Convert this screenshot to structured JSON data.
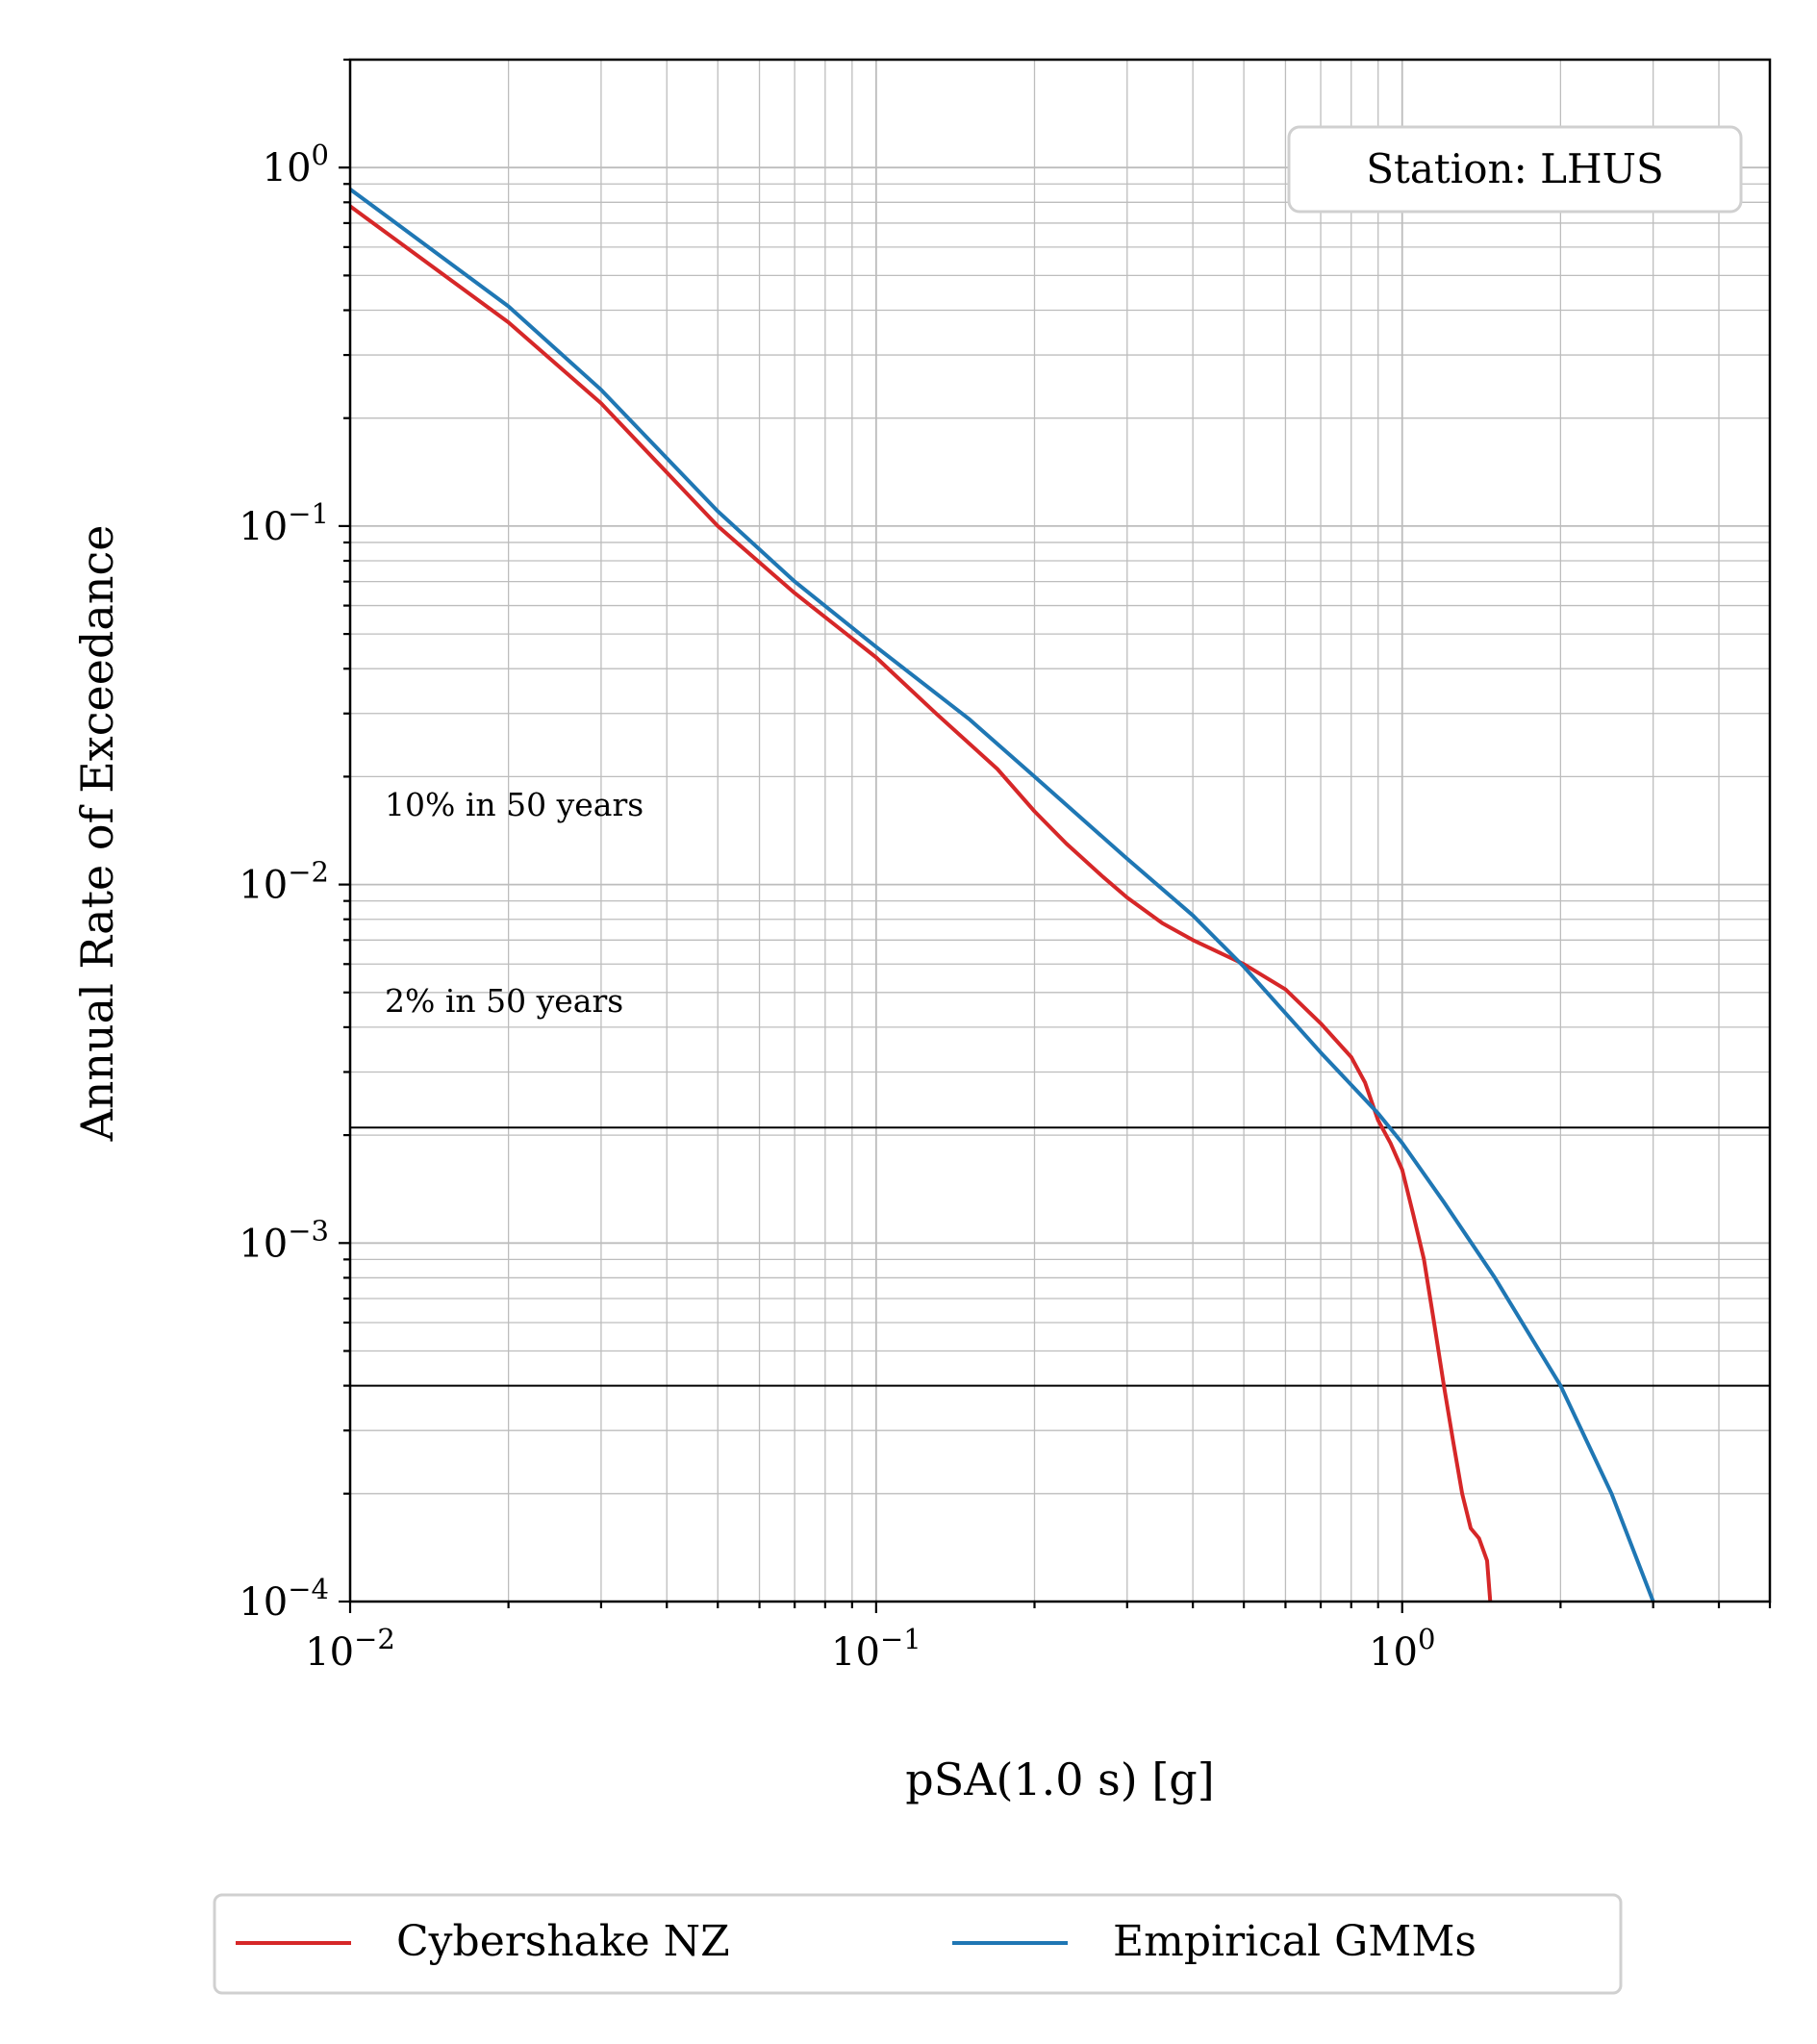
{
  "chart_data": {
    "type": "line",
    "xlabel": "pSA(1.0 s) [g]",
    "ylabel": "Annual Rate of Exceedance",
    "xscale": "log",
    "yscale": "log",
    "xlim": [
      0.01,
      5.0
    ],
    "ylim": [
      0.0001,
      2.0
    ],
    "x_ticks": [
      {
        "value": 0.01,
        "base": "10",
        "exp": "−2"
      },
      {
        "value": 0.1,
        "base": "10",
        "exp": "−1"
      },
      {
        "value": 1,
        "base": "10",
        "exp": "0"
      }
    ],
    "y_ticks": [
      {
        "value": 0.0001,
        "base": "10",
        "exp": "−4"
      },
      {
        "value": 0.001,
        "base": "10",
        "exp": "−3"
      },
      {
        "value": 0.01,
        "base": "10",
        "exp": "−2"
      },
      {
        "value": 0.1,
        "base": "10",
        "exp": "−1"
      },
      {
        "value": 1,
        "base": "10",
        "exp": "0"
      }
    ],
    "grid": true,
    "station_label": "Station: LHUS",
    "station_label_position": "top-right",
    "hazard_levels": [
      {
        "label": "10% in 50 years",
        "y": 0.0021
      },
      {
        "label": "2% in 50 years",
        "y": 0.0004
      }
    ],
    "legend_position": "below",
    "series": [
      {
        "name": "Cybershake NZ",
        "color": "#d62728",
        "x": [
          0.01,
          0.02,
          0.03,
          0.05,
          0.07,
          0.1,
          0.13,
          0.17,
          0.2,
          0.23,
          0.27,
          0.3,
          0.35,
          0.4,
          0.5,
          0.6,
          0.7,
          0.8,
          0.85,
          0.9,
          0.95,
          1.0,
          1.05,
          1.1,
          1.15,
          1.2,
          1.25,
          1.3,
          1.35,
          1.4,
          1.45,
          1.47
        ],
        "y": [
          0.78,
          0.37,
          0.22,
          0.1,
          0.065,
          0.043,
          0.03,
          0.021,
          0.016,
          0.013,
          0.0105,
          0.0092,
          0.0078,
          0.007,
          0.006,
          0.0051,
          0.0041,
          0.0033,
          0.0028,
          0.0022,
          0.0019,
          0.0016,
          0.0012,
          0.0009,
          0.0006,
          0.0004,
          0.00028,
          0.0002,
          0.00016,
          0.00015,
          0.00013,
          0.0001
        ]
      },
      {
        "name": "Empirical GMMs",
        "color": "#1f77b4",
        "x": [
          0.01,
          0.02,
          0.03,
          0.05,
          0.07,
          0.1,
          0.15,
          0.2,
          0.3,
          0.4,
          0.5,
          0.7,
          0.9,
          1.0,
          1.2,
          1.5,
          2.0,
          2.5,
          3.0
        ],
        "y": [
          0.87,
          0.41,
          0.24,
          0.11,
          0.07,
          0.046,
          0.029,
          0.02,
          0.0118,
          0.0082,
          0.0059,
          0.0034,
          0.0023,
          0.0019,
          0.0013,
          0.0008,
          0.0004,
          0.0002,
          0.0001
        ]
      }
    ]
  }
}
